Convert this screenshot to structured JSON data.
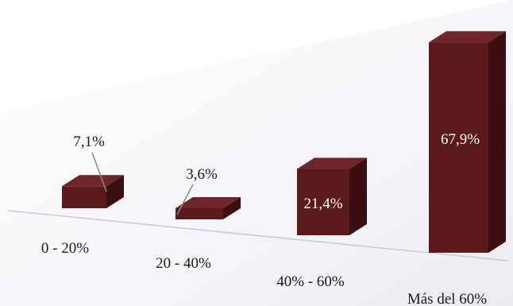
{
  "colors": {
    "bar_front": "#5a1a1c",
    "bar_side": "#3b0f11",
    "bar_top": "#6e2628",
    "background_shade": "#e8e8f0",
    "floor_line": "#c9c9d6",
    "leader_line": "#8a8a8a",
    "label_dark": "#1a1a1a",
    "label_light": "#ffffff"
  },
  "chart_data": {
    "type": "bar",
    "title": "",
    "xlabel": "",
    "ylabel": "",
    "style": "3d-perspective",
    "categories": [
      "0 - 20%",
      "20 - 40%",
      "40% - 60%",
      "Más del 60%"
    ],
    "values": [
      7.1,
      3.6,
      21.4,
      67.9
    ],
    "data_labels": [
      "7,1%",
      "3,6%",
      "21,4%",
      "67,9%"
    ],
    "ylim": [
      0,
      70
    ],
    "grid": false,
    "legend": "none"
  }
}
